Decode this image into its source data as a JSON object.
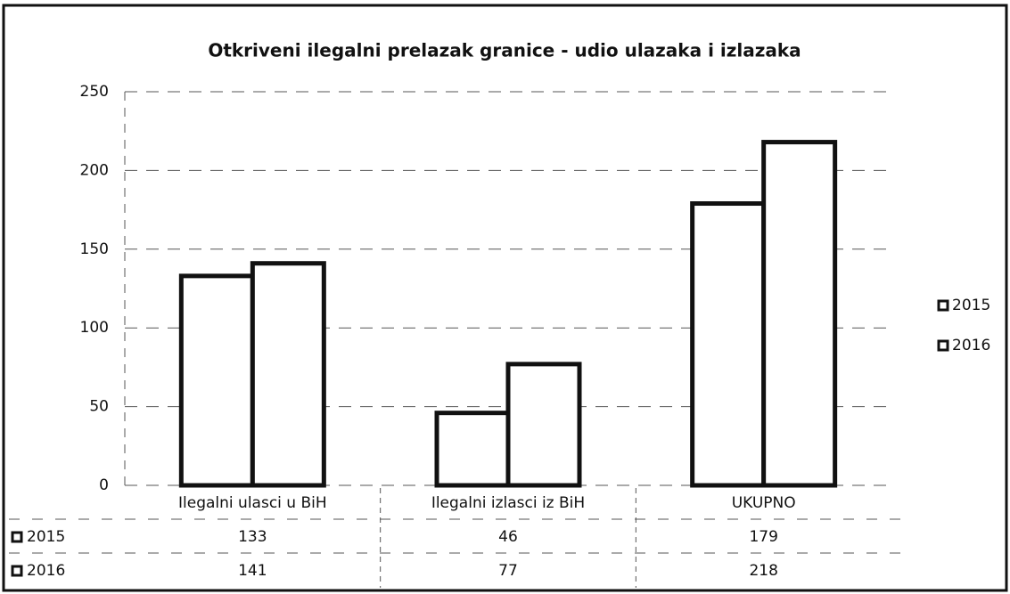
{
  "chart_data": {
    "type": "bar",
    "title": "Otkriveni ilegalni prelazak granice - udio ulazaka i izlazaka",
    "categories": [
      "Ilegalni ulasci u BiH",
      "Ilegalni izlasci iz BiH",
      "UKUPNO"
    ],
    "series": [
      {
        "name": "2015",
        "color": "#ffffff",
        "values": [
          133,
          46,
          179
        ]
      },
      {
        "name": "2016",
        "color": "#ffffff",
        "values": [
          141,
          77,
          218
        ]
      }
    ],
    "ylim": [
      0,
      250
    ],
    "yticks": [
      0,
      50,
      100,
      150,
      200,
      250
    ],
    "grid": true,
    "legend": "right",
    "data_table": true
  }
}
